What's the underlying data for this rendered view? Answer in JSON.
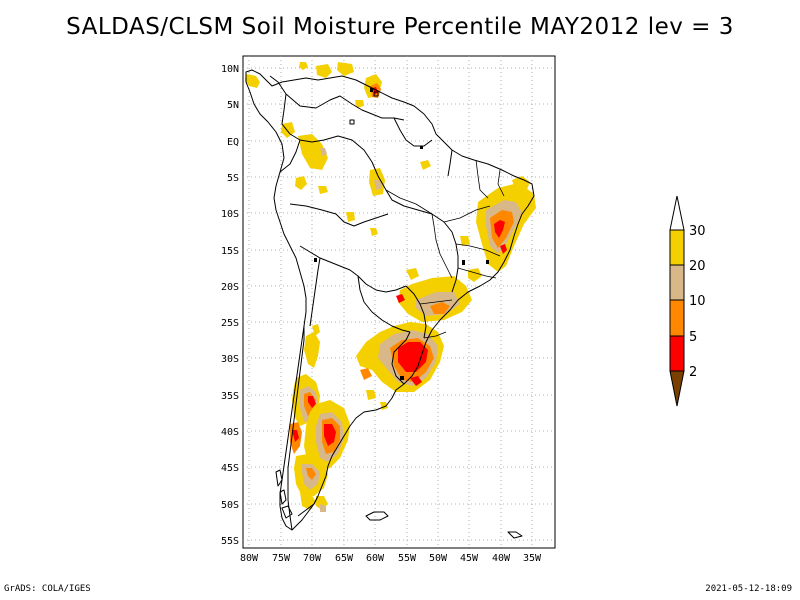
{
  "title": "SALDAS/CLSM Soil Moisture Percentile MAY2012 lev = 3",
  "lat_labels": [
    "10N",
    "5N",
    "EQ",
    "5S",
    "10S",
    "15S",
    "20S",
    "25S",
    "30S",
    "35S",
    "40S",
    "45S",
    "50S",
    "55S"
  ],
  "lon_labels": [
    "80W",
    "75W",
    "70W",
    "65W",
    "60W",
    "55W",
    "50W",
    "45W",
    "40W",
    "35W"
  ],
  "legend": {
    "labels": [
      "30",
      "20",
      "10",
      "5",
      "2"
    ],
    "colors": {
      "above": "#ffffff",
      "b20_30": "#f5d000",
      "b10_20": "#d8b888",
      "b5_10": "#ff8800",
      "b2_5": "#ff0000",
      "below": "#7a4000"
    }
  },
  "footer": {
    "left": "GrADS: COLA/IGES",
    "right": "2021-05-12-18:09"
  }
}
